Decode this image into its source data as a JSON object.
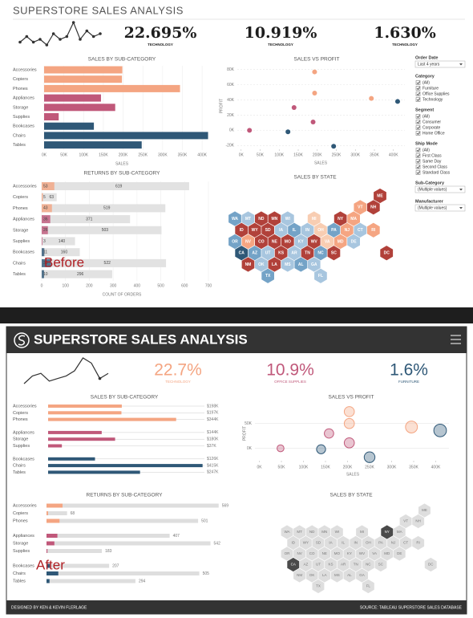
{
  "before": {
    "label": "Before",
    "title": "SUPERSTORE SALES ANALYSIS",
    "sparkline": [
      3,
      5,
      3,
      4,
      2,
      6,
      4,
      5,
      10,
      4,
      7,
      5,
      6
    ],
    "kpis": [
      {
        "value": "22.695%",
        "label": "TECHNOLOGY"
      },
      {
        "value": "10.919%",
        "label": "TECHNOLOGY"
      },
      {
        "value": "1.630%",
        "label": "TECHNOLOGY"
      }
    ],
    "sales": {
      "title": "SALES BY SUB-CATEGORY",
      "axis_label": "SALES",
      "categories": [
        "Accessories",
        "Copiers",
        "Phones",
        "Appliances",
        "Storage",
        "Supplies",
        "Bookcases",
        "Chairs",
        "Tables"
      ],
      "values": [
        198000,
        197000,
        344000,
        144000,
        180000,
        37000,
        126000,
        415000,
        247000
      ],
      "colors": [
        "#f4a582",
        "#f4a582",
        "#f4a582",
        "#c0587a",
        "#c0587a",
        "#c0587a",
        "#2f5877",
        "#2f5877",
        "#2f5877"
      ],
      "xlim": [
        0,
        420000
      ],
      "xticks": [
        {
          "value": 0,
          "label": "0K"
        },
        {
          "value": 50000,
          "label": "50K"
        },
        {
          "value": 100000,
          "label": "100K"
        },
        {
          "value": 150000,
          "label": "150K"
        },
        {
          "value": 200000,
          "label": "200K"
        },
        {
          "value": 250000,
          "label": "250K"
        },
        {
          "value": 300000,
          "label": "300K"
        },
        {
          "value": 350000,
          "label": "350K"
        },
        {
          "value": 400000,
          "label": "400K"
        }
      ]
    },
    "returns": {
      "title": "RETURNS BY SUB-CATEGORY",
      "axis_label": "COUNT OF ORDERS",
      "categories": [
        "Accessories",
        "Copiers",
        "Phones",
        "Appliances",
        "Storage",
        "Supplies",
        "Bookcases",
        "Chairs",
        "Tables"
      ],
      "returned": [
        53,
        5,
        43,
        36,
        26,
        3,
        11,
        39,
        10
      ],
      "total": [
        619,
        63,
        519,
        371,
        503,
        140,
        160,
        522,
        296
      ],
      "xlim": [
        0,
        700
      ],
      "xticks": [
        0,
        100,
        200,
        300,
        400,
        500,
        600,
        700
      ]
    },
    "scatter": {
      "title": "SALES VS PROFIT",
      "x_label": "SALES",
      "y_label": "PROFIT",
      "x": [
        193000,
        193000,
        342000,
        411000,
        139000,
        189000,
        22000,
        123000,
        243000
      ],
      "y": [
        77000,
        49000,
        42000,
        38000,
        30000,
        11000,
        0,
        -2000,
        -21000
      ],
      "colors": [
        "#f4a582",
        "#f4a582",
        "#f4a582",
        "#2f5877",
        "#c0587a",
        "#c0587a",
        "#c0587a",
        "#2f5877",
        "#2f5877"
      ],
      "xlim": [
        -10000,
        430000
      ],
      "ylim": [
        -25000,
        85000
      ],
      "xticks": [
        {
          "value": 0,
          "label": "0K"
        },
        {
          "value": 50000,
          "label": "50K"
        },
        {
          "value": 100000,
          "label": "100K"
        },
        {
          "value": 150000,
          "label": "150K"
        },
        {
          "value": 200000,
          "label": "200K"
        },
        {
          "value": 250000,
          "label": "250K"
        },
        {
          "value": 300000,
          "label": "300K"
        },
        {
          "value": 350000,
          "label": "350K"
        },
        {
          "value": 400000,
          "label": "400K"
        }
      ],
      "yticks": [
        {
          "value": -20000,
          "label": "-20K"
        },
        {
          "value": 0,
          "label": "0K"
        },
        {
          "value": 20000,
          "label": "20K"
        },
        {
          "value": 40000,
          "label": "40K"
        },
        {
          "value": 60000,
          "label": "60K"
        },
        {
          "value": 80000,
          "label": "80K"
        }
      ]
    },
    "states_title": "SALES BY STATE",
    "filters": [
      {
        "title": "Order Date",
        "type": "dropdown",
        "options": [
          "Last 4 years"
        ]
      },
      {
        "title": "Category",
        "type": "checkbox",
        "options": [
          "(All)",
          "Furniture",
          "Office Supplies",
          "Technology"
        ]
      },
      {
        "title": "Segment",
        "type": "checkbox",
        "options": [
          "(All)",
          "Consumer",
          "Corporate",
          "Home Office"
        ]
      },
      {
        "title": "Ship Mode",
        "type": "checkbox",
        "options": [
          "(All)",
          "First Class",
          "Same Day",
          "Second Class",
          "Standard Class"
        ]
      },
      {
        "title": "Sub-Category",
        "type": "dropdown",
        "options": [
          "(Multiple values)"
        ]
      },
      {
        "title": "Manufacturer",
        "type": "dropdown",
        "options": [
          "(Multiple values)"
        ]
      }
    ]
  },
  "after": {
    "label": "After",
    "title": "SUPERSTORE SALES ANALYSIS",
    "sparkline": [
      1,
      4,
      5,
      2,
      3,
      4,
      6,
      11,
      9,
      3,
      5
    ],
    "kpis": [
      {
        "value": "22.7%",
        "label": "TECHNOLOGY",
        "color": "#f4a582"
      },
      {
        "value": "10.9%",
        "label": "OFFICE SUPPLIES",
        "color": "#c0587a"
      },
      {
        "value": "1.6%",
        "label": "FURNITURE",
        "color": "#2f5877"
      }
    ],
    "sales": {
      "title": "SALES BY SUB-CATEGORY",
      "categories": [
        "Accessories",
        "Copiers",
        "Phones",
        "Appliances",
        "Storage",
        "Supplies",
        "Bookcases",
        "Chairs",
        "Tables"
      ],
      "values": [
        198000,
        197000,
        344000,
        144000,
        180000,
        37000,
        126000,
        415000,
        247000
      ],
      "value_labels": [
        "$198K",
        "$197K",
        "$344K",
        "$144K",
        "$180K",
        "$37K",
        "$126K",
        "$415K",
        "$247K"
      ],
      "colors": [
        "#f4a582",
        "#f4a582",
        "#f4a582",
        "#c0587a",
        "#c0587a",
        "#c0587a",
        "#2f5877",
        "#2f5877",
        "#2f5877"
      ],
      "xlim": [
        0,
        420000
      ]
    },
    "returns": {
      "title": "RETURNS BY SUB-CATEGORY",
      "categories": [
        "Accessories",
        "Copiers",
        "Phones",
        "Appliances",
        "Storage",
        "Supplies",
        "Bookcases",
        "Chairs",
        "Tables"
      ],
      "returned": [
        53,
        5,
        43,
        36,
        26,
        3,
        11,
        39,
        10
      ],
      "total": [
        569,
        68,
        501,
        407,
        542,
        183,
        207,
        505,
        294
      ],
      "xlim": [
        0,
        575
      ]
    },
    "scatter": {
      "title": "SALES VS PROFIT",
      "x_label": "SALES",
      "y_label": "PROFIT",
      "x": [
        204000,
        204000,
        345000,
        410000,
        158000,
        204000,
        48000,
        140000,
        250000
      ],
      "y": [
        74000,
        50000,
        43000,
        36000,
        30000,
        11000,
        0,
        -2000,
        -18000
      ],
      "colors": [
        "#f4a582",
        "#f4a582",
        "#f4a582",
        "#2f5877",
        "#c0587a",
        "#c0587a",
        "#c0587a",
        "#2f5877",
        "#2f5877"
      ],
      "xlim": [
        -10000,
        430000
      ],
      "ylim": [
        -25000,
        90000
      ],
      "xticks": [
        {
          "value": 0,
          "label": "0K"
        },
        {
          "value": 50000,
          "label": "50K"
        },
        {
          "value": 100000,
          "label": "100K"
        },
        {
          "value": 150000,
          "label": "150K"
        },
        {
          "value": 200000,
          "label": "200K"
        },
        {
          "value": 250000,
          "label": "250K"
        },
        {
          "value": 300000,
          "label": "300K"
        },
        {
          "value": 350000,
          "label": "350K"
        },
        {
          "value": 400000,
          "label": "400K"
        }
      ],
      "yticks": [
        {
          "value": 0,
          "label": "0K"
        },
        {
          "value": 50000,
          "label": "50K"
        }
      ]
    },
    "states_title": "SALES BY STATE",
    "footer": [
      "DESIGNED BY KEN & KEVIN FLERLAGE",
      "SOURCE: TABLEAU SUPERSTORE SALES DATABASE"
    ]
  },
  "states": [
    "ME",
    "VT",
    "NH",
    "WA",
    "MT",
    "ND",
    "MN",
    "WI",
    "MI",
    "NY",
    "MA",
    "ID",
    "WY",
    "SD",
    "IA",
    "IL",
    "IN",
    "OH",
    "PA",
    "NJ",
    "CT",
    "RI",
    "OR",
    "NV",
    "CO",
    "NE",
    "MO",
    "KY",
    "WV",
    "VA",
    "MD",
    "DE",
    "CA",
    "AZ",
    "UT",
    "KS",
    "AR",
    "TN",
    "NC",
    "SC",
    "DC",
    "NM",
    "OK",
    "LA",
    "MS",
    "AL",
    "GA",
    "TX",
    "FL"
  ]
}
